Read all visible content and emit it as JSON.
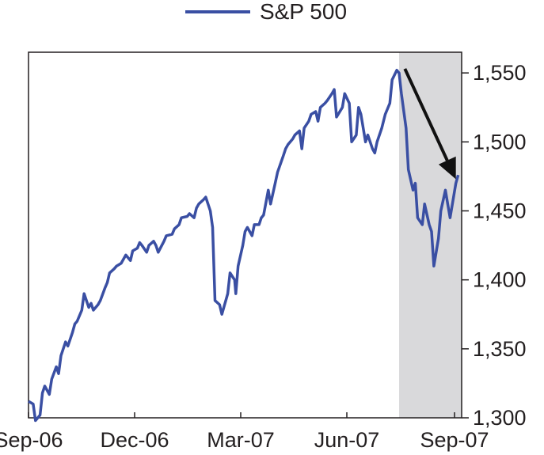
{
  "chart_data": {
    "type": "line",
    "title": "",
    "xlabel": "",
    "ylabel": "",
    "x_tick_labels": [
      "Sep-06",
      "Dec-06",
      "Mar-07",
      "Jun-07",
      "Sep-07"
    ],
    "y_tick_labels": [
      "1,300",
      "1,350",
      "1,400",
      "1,450",
      "1,500",
      "1,550"
    ],
    "y_ticks": [
      1300,
      1350,
      1400,
      1450,
      1500,
      1550
    ],
    "ylim": [
      1300,
      1565
    ],
    "xlim": [
      "2006-09-01",
      "2007-09-10"
    ],
    "grid": false,
    "y_axis_side": "right",
    "legend_position": "top-center",
    "colors": {
      "series": "#3a4fa3",
      "shading": "#d9d9db",
      "arrow": "#111111",
      "axis": "#231f20"
    },
    "shaded_region": {
      "x_start": "2007-07-18",
      "x_end": "2007-09-10"
    },
    "annotation_arrow": {
      "from": {
        "x": "2007-07-23",
        "y": 1553
      },
      "to": {
        "x": "2007-09-05",
        "y": 1473
      }
    },
    "series": [
      {
        "name": "S&P 500",
        "x": [
          "2006-09-01",
          "2006-09-05",
          "2006-09-07",
          "2006-09-11",
          "2006-09-13",
          "2006-09-15",
          "2006-09-19",
          "2006-09-21",
          "2006-09-25",
          "2006-09-27",
          "2006-09-29",
          "2006-10-03",
          "2006-10-05",
          "2006-10-09",
          "2006-10-11",
          "2006-10-13",
          "2006-10-17",
          "2006-10-19",
          "2006-10-23",
          "2006-10-25",
          "2006-10-27",
          "2006-10-31",
          "2006-11-02",
          "2006-11-06",
          "2006-11-08",
          "2006-11-10",
          "2006-11-14",
          "2006-11-16",
          "2006-11-20",
          "2006-11-24",
          "2006-11-28",
          "2006-11-30",
          "2006-12-04",
          "2006-12-06",
          "2006-12-08",
          "2006-12-12",
          "2006-12-14",
          "2006-12-18",
          "2006-12-20",
          "2006-12-22",
          "2006-12-27",
          "2006-12-29",
          "2007-01-03",
          "2007-01-05",
          "2007-01-09",
          "2007-01-11",
          "2007-01-16",
          "2007-01-18",
          "2007-01-22",
          "2007-01-24",
          "2007-01-26",
          "2007-01-30",
          "2007-02-01",
          "2007-02-05",
          "2007-02-07",
          "2007-02-09",
          "2007-02-13",
          "2007-02-15",
          "2007-02-20",
          "2007-02-22",
          "2007-02-26",
          "2007-02-27",
          "2007-03-01",
          "2007-03-05",
          "2007-03-07",
          "2007-03-09",
          "2007-03-13",
          "2007-03-15",
          "2007-03-19",
          "2007-03-21",
          "2007-03-23",
          "2007-03-27",
          "2007-03-29",
          "2007-04-02",
          "2007-04-04",
          "2007-04-09",
          "2007-04-11",
          "2007-04-13",
          "2007-04-17",
          "2007-04-19",
          "2007-04-23",
          "2007-04-25",
          "2007-04-27",
          "2007-05-01",
          "2007-05-03",
          "2007-05-07",
          "2007-05-09",
          "2007-05-11",
          "2007-05-15",
          "2007-05-17",
          "2007-05-21",
          "2007-05-23",
          "2007-05-25",
          "2007-05-30",
          "2007-06-01",
          "2007-06-05",
          "2007-06-07",
          "2007-06-11",
          "2007-06-13",
          "2007-06-15",
          "2007-06-19",
          "2007-06-21",
          "2007-06-25",
          "2007-06-27",
          "2007-06-29",
          "2007-07-03",
          "2007-07-06",
          "2007-07-10",
          "2007-07-12",
          "2007-07-16",
          "2007-07-18",
          "2007-07-20",
          "2007-07-24",
          "2007-07-26",
          "2007-07-30",
          "2007-08-01",
          "2007-08-03",
          "2007-08-07",
          "2007-08-09",
          "2007-08-13",
          "2007-08-15",
          "2007-08-17",
          "2007-08-21",
          "2007-08-23",
          "2007-08-27",
          "2007-08-29",
          "2007-08-31",
          "2007-09-05",
          "2007-09-07"
        ],
        "values": [
          1312,
          1310,
          1298,
          1302,
          1318,
          1323,
          1317,
          1328,
          1337,
          1332,
          1345,
          1355,
          1352,
          1362,
          1368,
          1370,
          1378,
          1390,
          1380,
          1383,
          1378,
          1382,
          1385,
          1394,
          1398,
          1405,
          1408,
          1410,
          1412,
          1418,
          1414,
          1421,
          1423,
          1427,
          1425,
          1420,
          1425,
          1428,
          1425,
          1420,
          1428,
          1432,
          1433,
          1437,
          1440,
          1445,
          1446,
          1448,
          1445,
          1452,
          1455,
          1458,
          1460,
          1450,
          1438,
          1385,
          1382,
          1375,
          1390,
          1405,
          1400,
          1390,
          1410,
          1425,
          1435,
          1438,
          1432,
          1440,
          1440,
          1445,
          1447,
          1465,
          1455,
          1470,
          1478,
          1490,
          1495,
          1498,
          1502,
          1505,
          1508,
          1495,
          1510,
          1515,
          1520,
          1522,
          1515,
          1525,
          1528,
          1530,
          1535,
          1538,
          1518,
          1525,
          1535,
          1528,
          1500,
          1505,
          1525,
          1520,
          1500,
          1505,
          1495,
          1492,
          1500,
          1510,
          1520,
          1528,
          1545,
          1552,
          1550,
          1535,
          1510,
          1480,
          1465,
          1470,
          1445,
          1440,
          1455,
          1440,
          1435,
          1410,
          1430,
          1450,
          1465,
          1455,
          1445,
          1470,
          1476
        ]
      }
    ]
  }
}
